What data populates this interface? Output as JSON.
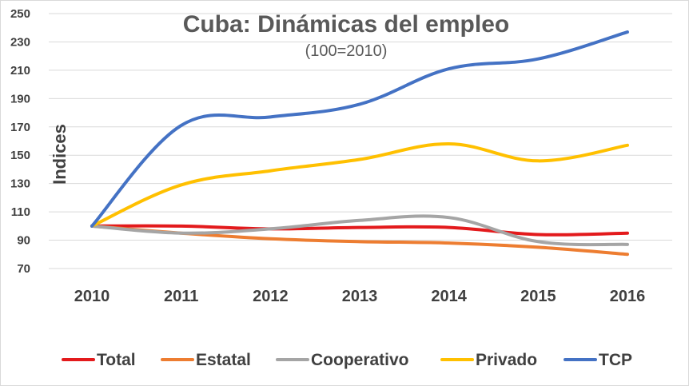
{
  "chart_data": {
    "type": "line",
    "title": "Cuba: Dinámicas del empleo",
    "subtitle": "(100=2010)",
    "xlabel": "",
    "ylabel": "Indices",
    "categories": [
      "2010",
      "2011",
      "2012",
      "2013",
      "2014",
      "2015",
      "2016"
    ],
    "yticks": [
      70,
      90,
      110,
      130,
      150,
      170,
      190,
      210,
      230,
      250
    ],
    "ylim": [
      70,
      250
    ],
    "grid": true,
    "legend_position": "bottom",
    "series": [
      {
        "name": "Total",
        "color": "#e31a1c",
        "values": [
          100,
          100,
          98,
          99,
          99,
          94,
          95
        ]
      },
      {
        "name": "Estatal",
        "color": "#ed7d31",
        "values": [
          100,
          95,
          91,
          89,
          88,
          85,
          80
        ]
      },
      {
        "name": "Cooperativo",
        "color": "#a5a5a5",
        "values": [
          100,
          95,
          98,
          104,
          106,
          89,
          87
        ]
      },
      {
        "name": "Privado",
        "color": "#ffc000",
        "values": [
          100,
          129,
          139,
          147,
          158,
          146,
          157
        ]
      },
      {
        "name": "TCP",
        "color": "#4472c4",
        "values": [
          100,
          171,
          177,
          186,
          211,
          218,
          237
        ]
      }
    ]
  }
}
